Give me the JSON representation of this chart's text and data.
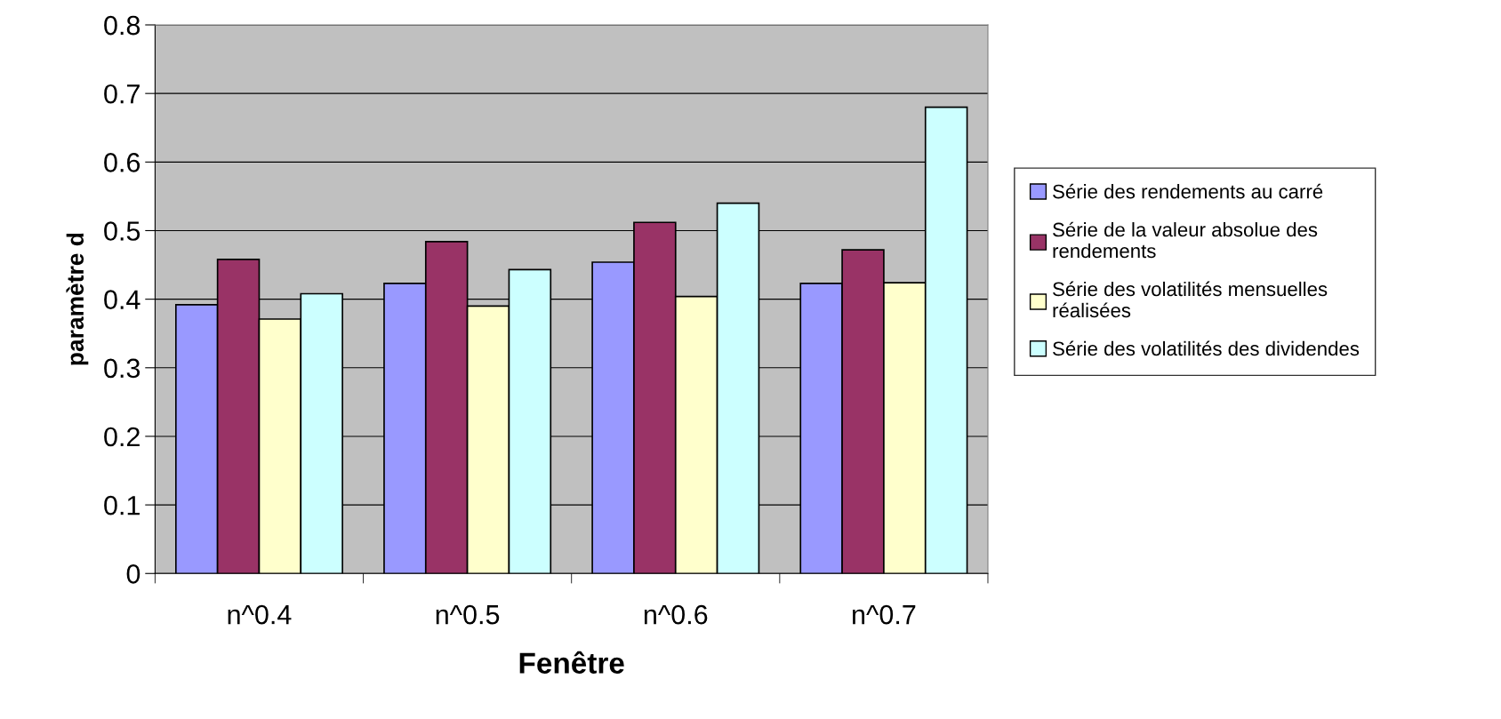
{
  "chart_data": {
    "type": "bar",
    "xlabel": "Fenêtre",
    "ylabel": "paramètre d",
    "categories": [
      "n^0.4",
      "n^0.5",
      "n^0.6",
      "n^0.7"
    ],
    "series": [
      {
        "name": "Série des rendements au carré",
        "color": "#9999ff",
        "values": [
          0.392,
          0.423,
          0.454,
          0.423
        ]
      },
      {
        "name": "Série de la valeur absolue des rendements",
        "color": "#993366",
        "values": [
          0.458,
          0.484,
          0.512,
          0.472
        ]
      },
      {
        "name": "Série des volatilités mensuelles réalisées",
        "color": "#ffffcc",
        "values": [
          0.371,
          0.39,
          0.404,
          0.424
        ]
      },
      {
        "name": "Série des volatilités des dividendes",
        "color": "#ccffff",
        "values": [
          0.408,
          0.443,
          0.54,
          0.68
        ]
      }
    ],
    "ylim": [
      0,
      0.8
    ],
    "yticks": [
      0,
      0.1,
      0.2,
      0.3,
      0.4,
      0.5,
      0.6,
      0.7,
      0.8
    ],
    "grid": "y",
    "legend": "right"
  }
}
